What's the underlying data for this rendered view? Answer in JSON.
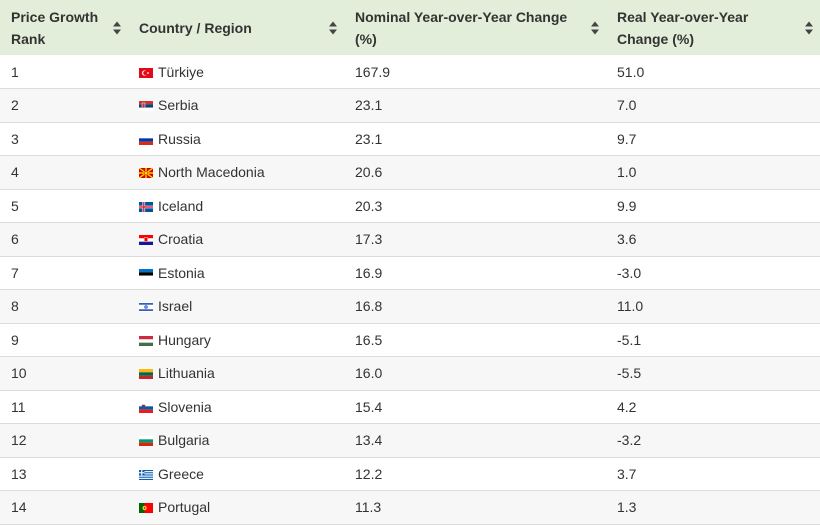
{
  "table": {
    "headers": {
      "rank": "Price Growth Rank",
      "country": "Country / Region",
      "nominal": "Nominal Year-over-Year Change (%)",
      "real": "Real Year-over-Year Change (%)"
    },
    "rows": [
      {
        "rank": "1",
        "country": "Türkiye",
        "flag": "turkey-flag",
        "nominal": "167.9",
        "real": "51.0"
      },
      {
        "rank": "2",
        "country": "Serbia",
        "flag": "serbia-flag",
        "nominal": "23.1",
        "real": "7.0"
      },
      {
        "rank": "3",
        "country": "Russia",
        "flag": "russia-flag",
        "nominal": "23.1",
        "real": "9.7"
      },
      {
        "rank": "4",
        "country": "North Macedonia",
        "flag": "north-macedonia-flag",
        "nominal": "20.6",
        "real": "1.0"
      },
      {
        "rank": "5",
        "country": "Iceland",
        "flag": "iceland-flag",
        "nominal": "20.3",
        "real": "9.9"
      },
      {
        "rank": "6",
        "country": "Croatia",
        "flag": "croatia-flag",
        "nominal": "17.3",
        "real": "3.6"
      },
      {
        "rank": "7",
        "country": "Estonia",
        "flag": "estonia-flag",
        "nominal": "16.9",
        "real": "-3.0"
      },
      {
        "rank": "8",
        "country": "Israel",
        "flag": "israel-flag",
        "nominal": "16.8",
        "real": "11.0"
      },
      {
        "rank": "9",
        "country": "Hungary",
        "flag": "hungary-flag",
        "nominal": "16.5",
        "real": "-5.1"
      },
      {
        "rank": "10",
        "country": "Lithuania",
        "flag": "lithuania-flag",
        "nominal": "16.0",
        "real": "-5.5"
      },
      {
        "rank": "11",
        "country": "Slovenia",
        "flag": "slovenia-flag",
        "nominal": "15.4",
        "real": "4.2"
      },
      {
        "rank": "12",
        "country": "Bulgaria",
        "flag": "bulgaria-flag",
        "nominal": "13.4",
        "real": "-3.2"
      },
      {
        "rank": "13",
        "country": "Greece",
        "flag": "greece-flag",
        "nominal": "12.2",
        "real": "3.7"
      },
      {
        "rank": "14",
        "country": "Portugal",
        "flag": "portugal-flag",
        "nominal": "11.3",
        "real": "1.3"
      }
    ]
  },
  "colors": {
    "header_bg": "#e2eed9",
    "row_alt_bg": "#f7f7f7",
    "border": "#dcdcdc",
    "text": "#333333"
  }
}
